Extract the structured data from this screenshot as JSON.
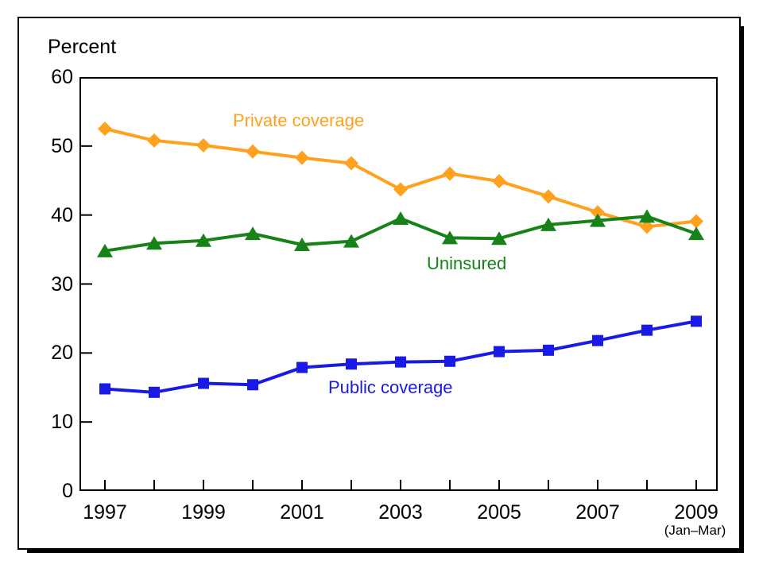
{
  "chart_data": {
    "type": "line",
    "title": "",
    "ylabel": "Percent",
    "ylim": [
      0,
      60
    ],
    "yticks": [
      0,
      10,
      20,
      30,
      40,
      50,
      60
    ],
    "x": [
      1997,
      1998,
      1999,
      2000,
      2001,
      2002,
      2003,
      2004,
      2005,
      2006,
      2007,
      2008,
      2009
    ],
    "labeled_x_ticks": [
      1997,
      1999,
      2001,
      2003,
      2005,
      2007,
      2009
    ],
    "x_note": "(Jan–Mar)",
    "grid": false,
    "legend_position": "inline-labels",
    "series": [
      {
        "name": "Private coverage",
        "color": "#FFA11E",
        "marker": "diamond",
        "values": [
          52.5,
          50.8,
          50.1,
          49.2,
          48.3,
          47.5,
          43.7,
          46.0,
          44.9,
          42.7,
          40.4,
          38.3,
          39.1
        ]
      },
      {
        "name": "Uninsured",
        "color": "#178217",
        "marker": "triangle",
        "values": [
          34.8,
          35.9,
          36.3,
          37.3,
          35.7,
          36.2,
          39.5,
          36.7,
          36.6,
          38.6,
          39.2,
          39.8,
          37.3
        ]
      },
      {
        "name": "Public coverage",
        "color": "#1A1AE6",
        "marker": "square",
        "values": [
          14.8,
          14.3,
          15.6,
          15.4,
          17.9,
          18.4,
          18.7,
          18.8,
          20.2,
          20.4,
          21.8,
          23.3,
          24.6
        ]
      }
    ]
  }
}
